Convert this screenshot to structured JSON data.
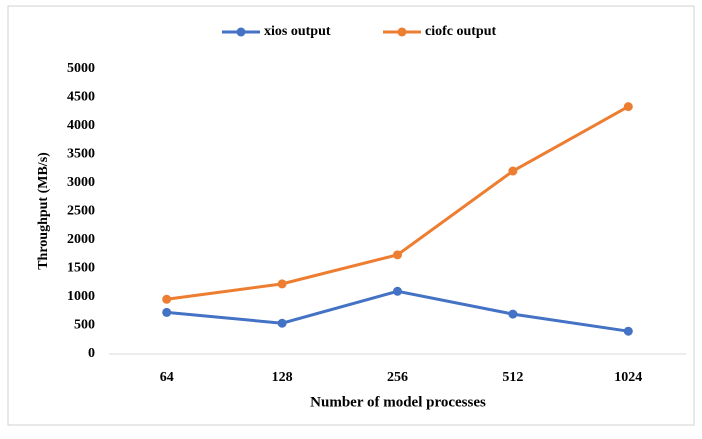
{
  "chart_data": {
    "type": "line",
    "categories": [
      "64",
      "128",
      "256",
      "512",
      "1024"
    ],
    "series": [
      {
        "name": "xios output",
        "color": "#4472c4",
        "values": [
          730,
          540,
          1100,
          700,
          400
        ]
      },
      {
        "name": "ciofc output",
        "color": "#ed7d31",
        "values": [
          960,
          1230,
          1740,
          3210,
          4340
        ]
      }
    ],
    "ylim": [
      0,
      5000
    ],
    "yticks": [
      0,
      500,
      1000,
      1500,
      2000,
      2500,
      3000,
      3500,
      4000,
      4500,
      5000
    ],
    "grid": false,
    "y_label": "Throughput  (MB/s)",
    "x_label": "Number of model processes",
    "legend": "top"
  }
}
